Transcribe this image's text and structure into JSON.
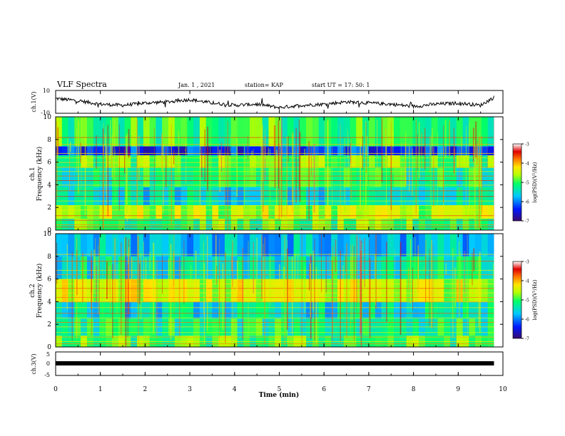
{
  "header": {
    "title": "VLF Spectra",
    "date": "Jan. 1 , 2021",
    "station": "station= KAP",
    "start_ut": "start UT = 17: 50: 1"
  },
  "colors": {
    "trace": "#000000",
    "ch3_bar": "#000000",
    "colormap": [
      "#3a0a6e",
      "#0018ff",
      "#00c8ff",
      "#00ff6a",
      "#b8ff00",
      "#ffe400",
      "#ff7a00",
      "#e00000",
      "#ffffff"
    ]
  },
  "chart_data": [
    {
      "type": "line",
      "panel": "ch1",
      "ylabel": "ch.1(V)",
      "ylim": [
        -10,
        10
      ],
      "yticks": [
        "10",
        "-10"
      ],
      "x": [
        0,
        0.5,
        1,
        1.5,
        2,
        2.5,
        3,
        3.5,
        4,
        4.5,
        5,
        5.5,
        6,
        6.5,
        7,
        7.5,
        8,
        8.5,
        9,
        9.5,
        9.8
      ],
      "y": [
        3,
        1,
        -2,
        -3,
        -1,
        0,
        2,
        -1,
        -3,
        -2,
        -5,
        -3,
        -2,
        0,
        -1,
        -2,
        -4,
        -2,
        -1,
        -3,
        4
      ]
    },
    {
      "type": "heatmap",
      "panel": "ch1",
      "ylabel": "ch.1\nFrequency (kHz)",
      "ylim": [
        0,
        10
      ],
      "yticks": [
        "0",
        "2",
        "4",
        "6",
        "8",
        "10"
      ],
      "colorbar": {
        "label": "log(PSD) (V²/Hz)",
        "range": [
          -7,
          -3
        ],
        "ticks": [
          "-3",
          "-4",
          "-5",
          "-6",
          "-7"
        ]
      },
      "bands": [
        {
          "from": 0,
          "to": 1,
          "level": -5.0
        },
        {
          "from": 1,
          "to": 2.2,
          "level": -4.6
        },
        {
          "from": 2.2,
          "to": 3.8,
          "level": -5.5
        },
        {
          "from": 3.8,
          "to": 5.5,
          "level": -5.2
        },
        {
          "from": 5.5,
          "to": 6.6,
          "level": -4.9
        },
        {
          "from": 6.6,
          "to": 7.4,
          "level": -6.3
        },
        {
          "from": 7.4,
          "to": 10,
          "level": -5.0
        }
      ]
    },
    {
      "type": "heatmap",
      "panel": "ch2",
      "ylabel": "ch.2\nFrequency (kHz)",
      "ylim": [
        0,
        10
      ],
      "yticks": [
        "0",
        "2",
        "4",
        "6",
        "8",
        "10"
      ],
      "colorbar": {
        "label": "log(PSD) (V²/Hz)",
        "range": [
          -7,
          -3
        ],
        "ticks": [
          "-3",
          "-4",
          "-5",
          "-6",
          "-7"
        ]
      },
      "bands": [
        {
          "from": 0,
          "to": 1,
          "level": -5.0
        },
        {
          "from": 1,
          "to": 2.5,
          "level": -5.2
        },
        {
          "from": 2.5,
          "to": 4,
          "level": -5.5
        },
        {
          "from": 4,
          "to": 6,
          "level": -4.5
        },
        {
          "from": 6,
          "to": 8,
          "level": -5.4
        },
        {
          "from": 8,
          "to": 10,
          "level": -5.7
        }
      ]
    },
    {
      "type": "line",
      "panel": "ch3",
      "ylabel": "ch.3(V)",
      "ylim": [
        -5,
        5
      ],
      "yticks": [
        "5",
        "0",
        "-5"
      ],
      "x": [
        0,
        9.8
      ],
      "y": [
        0,
        0
      ]
    }
  ],
  "xaxis": {
    "label": "Time (min)",
    "range": [
      0,
      10
    ],
    "ticks": [
      "0",
      "1",
      "2",
      "3",
      "4",
      "5",
      "6",
      "7",
      "8",
      "9",
      "10"
    ]
  }
}
